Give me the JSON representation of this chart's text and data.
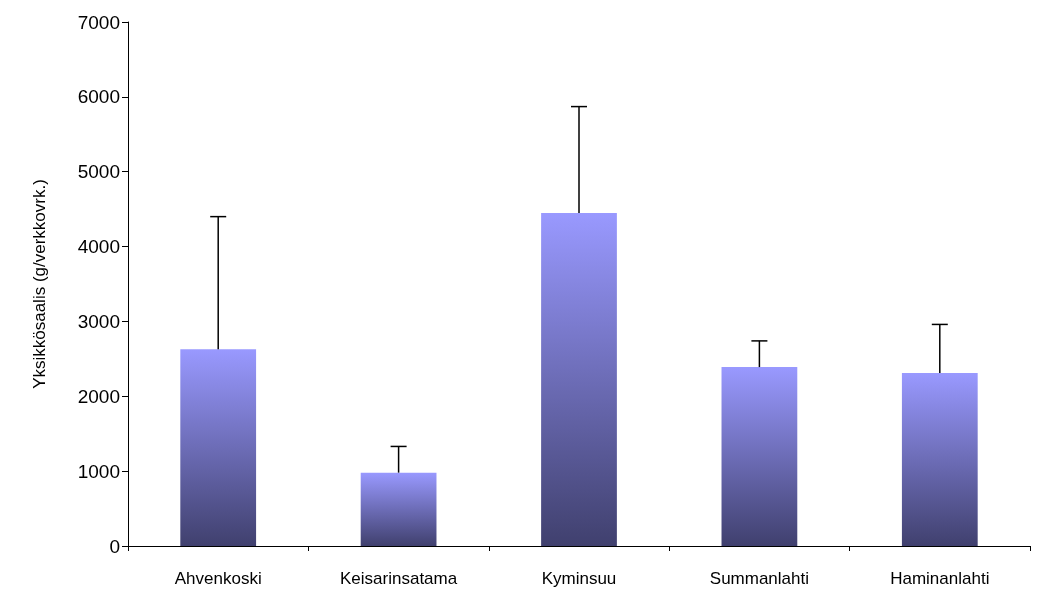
{
  "chart_data": {
    "type": "bar",
    "ylabel": "Yksikkösaalis (g/verkkovrk.)",
    "categories": [
      "Ahvenkoski",
      "Keisarinsatama",
      "Kyminsuu",
      "Summanlahti",
      "Haminanlahti"
    ],
    "values": [
      2630,
      980,
      4450,
      2390,
      2310
    ],
    "errors": [
      [
        2630,
        4400
      ],
      [
        980,
        1330
      ],
      [
        4450,
        5870
      ],
      [
        2390,
        2740
      ],
      [
        2310,
        2960
      ]
    ],
    "color": "#9999ff",
    "ylim": [
      0,
      7000
    ],
    "yticks": [
      0,
      1000,
      2000,
      3000,
      4000,
      5000,
      6000,
      7000
    ],
    "grid": false
  }
}
